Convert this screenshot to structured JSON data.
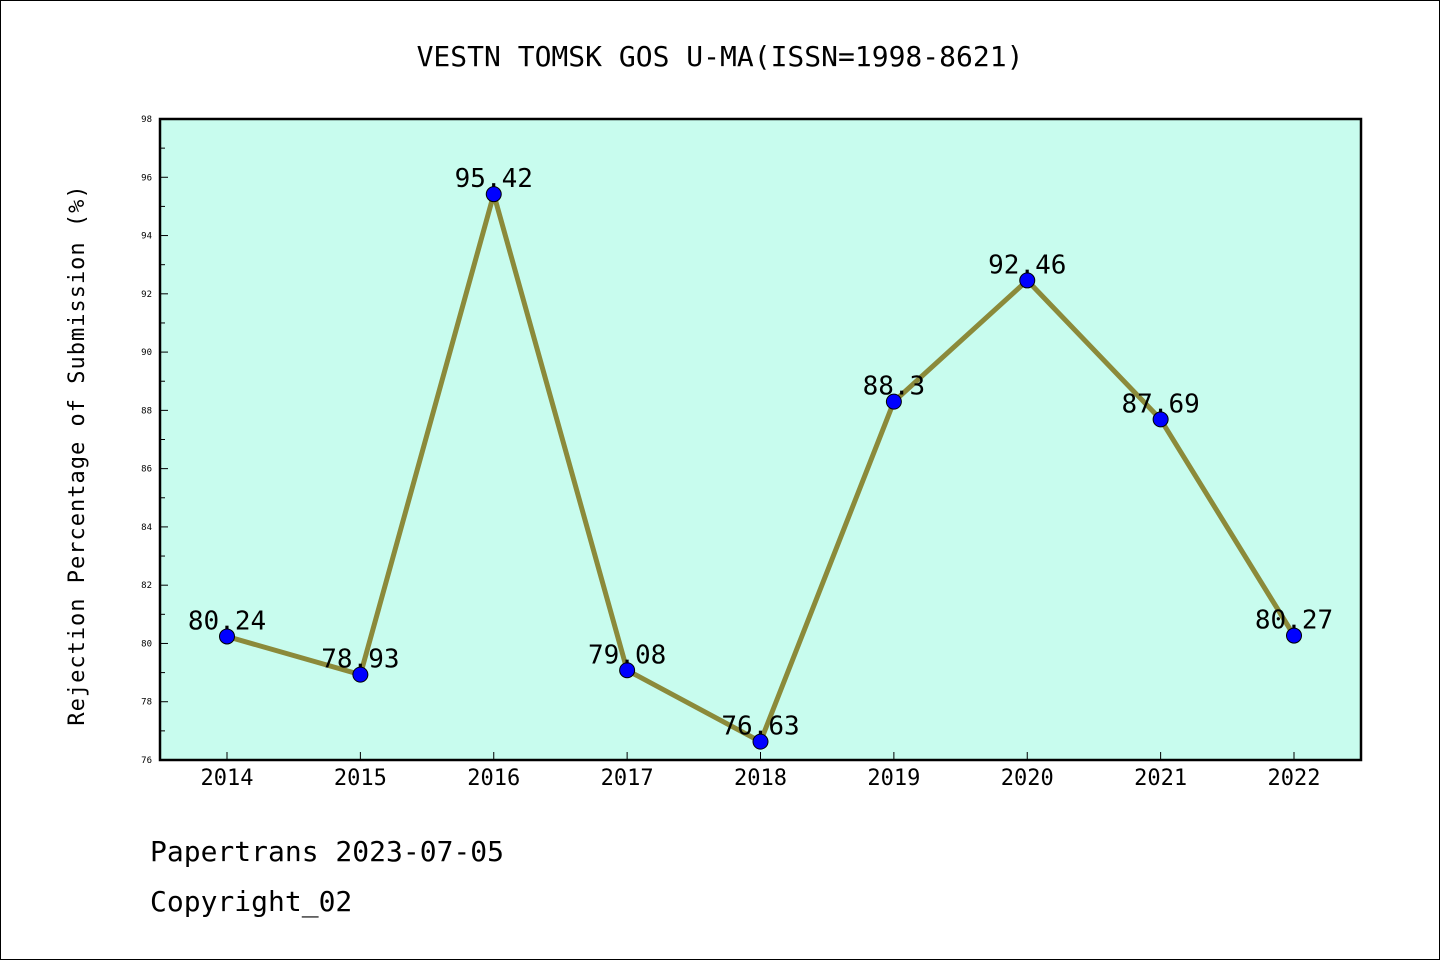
{
  "chart_data": {
    "type": "line",
    "title": "VESTN TOMSK GOS U-MA(ISSN=1998-8621)",
    "xlabel": "",
    "ylabel": "Rejection Percentage of Submission (%)",
    "x": [
      "2014",
      "2015",
      "2016",
      "2017",
      "2018",
      "2019",
      "2020",
      "2021",
      "2022"
    ],
    "series": [
      {
        "values": [
          80.24,
          78.93,
          95.42,
          79.08,
          76.63,
          88.3,
          92.46,
          87.69,
          80.27
        ]
      }
    ],
    "data_labels": [
      "80.24",
      "78.93",
      "95.42",
      "79.08",
      "76.63",
      "88.3",
      "92.46",
      "87.69",
      "80.27"
    ],
    "ylim": [
      76,
      98
    ],
    "yticks": [
      76,
      78,
      80,
      82,
      84,
      86,
      88,
      90,
      92,
      94,
      96,
      98
    ],
    "grid": false,
    "legend": "none",
    "colors": {
      "plot_background": "#c8fcee",
      "line": "#8b8a3a",
      "marker": "#0000ff"
    }
  },
  "footer": {
    "line1": "Papertrans 2023-07-05",
    "line2": "Copyright_02"
  }
}
